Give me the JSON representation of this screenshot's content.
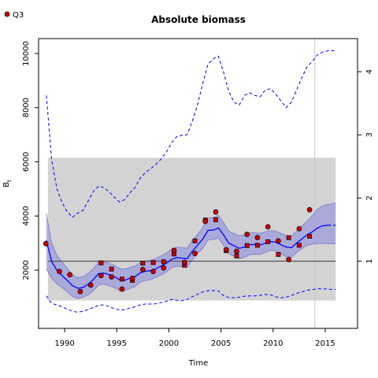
{
  "legend": {
    "label": "Q3"
  },
  "chart_data": {
    "type": "line",
    "title": "Absolute biomass",
    "xlabel": "Time",
    "ylabel": "B",
    "ylabel_subscript": "t",
    "xlim": [
      1987.5,
      2018.1
    ],
    "ylim": [
      -150,
      10550
    ],
    "xticks": [
      1990,
      1995,
      2000,
      2005,
      2010,
      2015
    ],
    "yticks": [
      2000,
      4000,
      6000,
      8000,
      10000
    ],
    "y2ticks": [
      1,
      2,
      3,
      4
    ],
    "y2_per_unit": 2332,
    "grid": false,
    "legend_position": "top-left",
    "colors": {
      "estimate": "#0000ff",
      "band": "#9999dd",
      "reference_box": "#d3d3d3",
      "reference_line": "#555555",
      "points": "#cc0000",
      "vline": "#c8c8c8"
    },
    "reference_box": {
      "x": [
        1988.4,
        2016
      ],
      "y": [
        880,
        6150
      ]
    },
    "reference_level": {
      "y": 2332,
      "x": [
        1988.4,
        2016
      ]
    },
    "vertical_marker": {
      "x": 2014
    },
    "estimate": {
      "name": "B",
      "x": [
        1988.25,
        1988.75,
        1989.25,
        1989.75,
        1990.25,
        1990.75,
        1991.25,
        1991.75,
        1992.25,
        1992.75,
        1993.25,
        1993.75,
        1994.25,
        1994.75,
        1995.25,
        1995.75,
        1996.25,
        1996.75,
        1997.25,
        1997.75,
        1998.25,
        1998.75,
        1999.25,
        1999.75,
        2000.25,
        2000.75,
        2001.25,
        2001.75,
        2002.25,
        2002.75,
        2003.25,
        2003.75,
        2004.25,
        2004.75,
        2005.25,
        2005.75,
        2006.25,
        2006.75,
        2007.25,
        2007.75,
        2008.25,
        2008.75,
        2009.25,
        2009.75,
        2010.25,
        2010.75,
        2011.25,
        2011.75,
        2012.25,
        2012.75,
        2013.25,
        2013.75,
        2014.25,
        2014.75,
        2015.25,
        2015.75,
        2016.0
      ],
      "y": [
        3100,
        2330,
        2000,
        1800,
        1620,
        1430,
        1330,
        1360,
        1480,
        1650,
        1870,
        1890,
        1840,
        1760,
        1650,
        1630,
        1700,
        1760,
        1900,
        1960,
        1980,
        2050,
        2150,
        2250,
        2400,
        2460,
        2440,
        2420,
        2700,
        2920,
        3150,
        3470,
        3480,
        3560,
        3300,
        3000,
        2900,
        2810,
        2850,
        2940,
        2950,
        2930,
        3000,
        3060,
        3030,
        2940,
        2850,
        2830,
        3000,
        3150,
        3300,
        3410,
        3550,
        3640,
        3660,
        3660,
        3660
      ],
      "lower": [
        2050,
        1700,
        1500,
        1350,
        1200,
        1030,
        950,
        990,
        1090,
        1250,
        1450,
        1490,
        1430,
        1360,
        1250,
        1240,
        1320,
        1390,
        1560,
        1620,
        1650,
        1730,
        1830,
        1930,
        2090,
        2150,
        2130,
        2110,
        2380,
        2600,
        2810,
        3120,
        3120,
        3190,
        2920,
        2610,
        2510,
        2420,
        2470,
        2570,
        2590,
        2580,
        2660,
        2730,
        2700,
        2600,
        2490,
        2480,
        2650,
        2790,
        2920,
        2960,
        2980,
        2990,
        2980,
        2970,
        2960
      ],
      "upper": [
        4100,
        3000,
        2550,
        2300,
        2070,
        1830,
        1720,
        1760,
        1880,
        2060,
        2290,
        2310,
        2260,
        2180,
        2060,
        2040,
        2100,
        2150,
        2280,
        2340,
        2360,
        2430,
        2530,
        2630,
        2780,
        2850,
        2830,
        2810,
        3100,
        3320,
        3570,
        3920,
        3940,
        4030,
        3760,
        3440,
        3350,
        3260,
        3300,
        3380,
        3380,
        3360,
        3420,
        3470,
        3440,
        3360,
        3280,
        3260,
        3440,
        3620,
        3800,
        4000,
        4250,
        4380,
        4430,
        4460,
        4480
      ]
    },
    "predicted_from": 2015.25,
    "outer_bounds": {
      "x": [
        1988.25,
        1988.75,
        1989.25,
        1989.75,
        1990.25,
        1990.75,
        1991.25,
        1991.75,
        1992.25,
        1992.75,
        1993.25,
        1993.75,
        1994.25,
        1994.75,
        1995.25,
        1995.75,
        1996.25,
        1996.75,
        1997.25,
        1997.75,
        1998.25,
        1998.75,
        1999.25,
        1999.75,
        2000.25,
        2000.75,
        2001.25,
        2001.75,
        2002.25,
        2002.75,
        2003.25,
        2003.75,
        2004.25,
        2004.75,
        2005.25,
        2005.75,
        2006.25,
        2006.75,
        2007.25,
        2007.75,
        2008.25,
        2008.75,
        2009.25,
        2009.75,
        2010.25,
        2010.75,
        2011.25,
        2011.75,
        2012.25,
        2012.75,
        2013.25,
        2013.75,
        2014.25,
        2014.75,
        2015.25,
        2015.75,
        2016.0
      ],
      "lower": [
        1050,
        780,
        710,
        650,
        560,
        480,
        450,
        480,
        550,
        620,
        700,
        720,
        660,
        580,
        530,
        540,
        600,
        650,
        720,
        750,
        750,
        760,
        800,
        850,
        920,
        890,
        870,
        920,
        1020,
        1110,
        1200,
        1240,
        1250,
        1230,
        1060,
        990,
        980,
        1000,
        1040,
        1050,
        1050,
        1070,
        1100,
        1090,
        1020,
        980,
        1000,
        1070,
        1140,
        1200,
        1260,
        1280,
        1310,
        1310,
        1300,
        1290,
        1290
      ],
      "upper": [
        8450,
        6100,
        5000,
        4500,
        4150,
        3950,
        4100,
        4200,
        4550,
        4900,
        5100,
        5050,
        4900,
        4700,
        4520,
        4600,
        4850,
        5050,
        5400,
        5600,
        5750,
        5900,
        6100,
        6350,
        6700,
        6930,
        6980,
        7000,
        7500,
        8100,
        8900,
        9600,
        9800,
        9900,
        9300,
        8600,
        8200,
        8100,
        8450,
        8550,
        8450,
        8400,
        8650,
        8700,
        8500,
        8250,
        8000,
        8200,
        8650,
        9100,
        9500,
        9700,
        9950,
        10050,
        10100,
        10100,
        10100
      ]
    },
    "observations": {
      "name": "Q3",
      "circles": [
        [
          1988.2,
          2980
        ],
        [
          1989.5,
          1950
        ],
        [
          1990.5,
          1830
        ],
        [
          1991.5,
          1210
        ],
        [
          1992.5,
          1450
        ],
        [
          1993.5,
          1800
        ],
        [
          1994.5,
          1750
        ],
        [
          1995.5,
          1300
        ],
        [
          1996.5,
          1700
        ],
        [
          1997.5,
          2020
        ],
        [
          1998.5,
          1950
        ],
        [
          1999.5,
          2080
        ],
        [
          2000.5,
          2730
        ],
        [
          2001.5,
          2290
        ],
        [
          2002.5,
          2620
        ],
        [
          2003.5,
          3800
        ],
        [
          2004.5,
          4150
        ],
        [
          2005.5,
          2750
        ],
        [
          2006.5,
          2700
        ],
        [
          2007.5,
          3320
        ],
        [
          2008.5,
          3200
        ],
        [
          2009.5,
          3600
        ],
        [
          2010.5,
          3080
        ],
        [
          2011.5,
          2390
        ],
        [
          2012.5,
          3530
        ],
        [
          2013.5,
          4230
        ]
      ],
      "squares": [
        [
          1993.5,
          2270
        ],
        [
          1994.5,
          2040
        ],
        [
          1995.5,
          1670
        ],
        [
          1996.5,
          1620
        ],
        [
          1997.5,
          2260
        ],
        [
          1998.5,
          2280
        ],
        [
          1999.5,
          2310
        ],
        [
          2000.5,
          2600
        ],
        [
          2001.5,
          2180
        ],
        [
          2002.5,
          3080
        ],
        [
          2003.5,
          3850
        ],
        [
          2004.5,
          3860
        ],
        [
          2005.5,
          2720
        ],
        [
          2006.5,
          2520
        ],
        [
          2007.5,
          2910
        ],
        [
          2008.5,
          2920
        ],
        [
          2009.5,
          3050
        ],
        [
          2010.5,
          2580
        ],
        [
          2011.5,
          3200
        ],
        [
          2012.5,
          2920
        ],
        [
          2013.5,
          3250
        ]
      ]
    }
  }
}
